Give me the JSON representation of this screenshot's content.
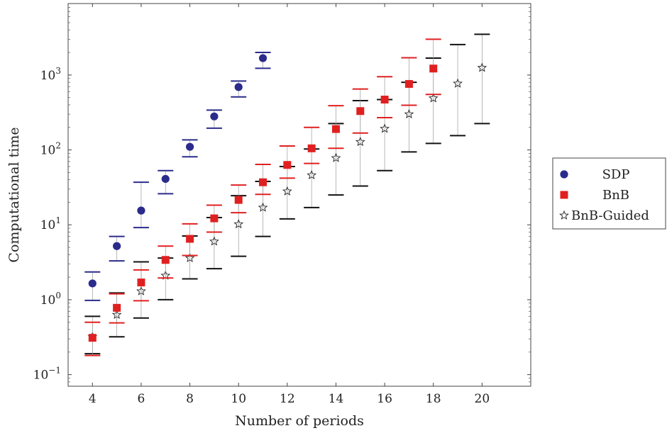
{
  "chart_data": {
    "type": "scatter",
    "title": "",
    "xlabel": "Number of periods",
    "ylabel": "Computational time",
    "ylabel_color": "#e04a3a",
    "xlim": [
      3,
      22
    ],
    "ylim": [
      0.07,
      9000
    ],
    "yscale": "log",
    "x_ticks": [
      "4",
      "6",
      "8",
      "10",
      "12",
      "14",
      "16",
      "18",
      "20"
    ],
    "y_ticks": [
      {
        "base": "10",
        "exp": "−1",
        "value": 0.1
      },
      {
        "base": "10",
        "exp": "0",
        "value": 1
      },
      {
        "base": "10",
        "exp": "1",
        "value": 10
      },
      {
        "base": "10",
        "exp": "2",
        "value": 100
      },
      {
        "base": "10",
        "exp": "3",
        "value": 1000
      }
    ],
    "grid": false,
    "legend_position": "right",
    "series": [
      {
        "name": "SDP",
        "marker": "circle",
        "color": "#2b2b8c",
        "bar_color": "#2b2b8c",
        "points": [
          {
            "x": 4,
            "y": 1.65,
            "lo": 0.98,
            "hi": 2.35
          },
          {
            "x": 5,
            "y": 5.2,
            "lo": 3.3,
            "hi": 7.0
          },
          {
            "x": 6,
            "y": 15.5,
            "lo": 9.2,
            "hi": 37
          },
          {
            "x": 7,
            "y": 41,
            "lo": 26,
            "hi": 53
          },
          {
            "x": 8,
            "y": 110,
            "lo": 81,
            "hi": 136
          },
          {
            "x": 9,
            "y": 280,
            "lo": 195,
            "hi": 340
          },
          {
            "x": 10,
            "y": 690,
            "lo": 510,
            "hi": 830
          },
          {
            "x": 11,
            "y": 1680,
            "lo": 1230,
            "hi": 2000
          }
        ]
      },
      {
        "name": "BnB",
        "marker": "square",
        "color": "#e02020",
        "bar_color": "#e02020",
        "points": [
          {
            "x": 4,
            "y": 0.31,
            "lo": 0.18,
            "hi": 0.5
          },
          {
            "x": 5,
            "y": 0.78,
            "lo": 0.49,
            "hi": 1.2
          },
          {
            "x": 6,
            "y": 1.7,
            "lo": 0.97,
            "hi": 2.5
          },
          {
            "x": 7,
            "y": 3.4,
            "lo": 1.95,
            "hi": 5.2
          },
          {
            "x": 8,
            "y": 6.5,
            "lo": 3.9,
            "hi": 10.3
          },
          {
            "x": 9,
            "y": 12.2,
            "lo": 8.0,
            "hi": 18.3
          },
          {
            "x": 10,
            "y": 21.5,
            "lo": 14.5,
            "hi": 34
          },
          {
            "x": 11,
            "y": 37,
            "lo": 25.5,
            "hi": 64
          },
          {
            "x": 12,
            "y": 63,
            "lo": 42,
            "hi": 113
          },
          {
            "x": 13,
            "y": 105,
            "lo": 66,
            "hi": 200
          },
          {
            "x": 14,
            "y": 190,
            "lo": 105,
            "hi": 390
          },
          {
            "x": 15,
            "y": 330,
            "lo": 168,
            "hi": 650
          },
          {
            "x": 16,
            "y": 470,
            "lo": 270,
            "hi": 950
          },
          {
            "x": 17,
            "y": 760,
            "lo": 395,
            "hi": 1700
          },
          {
            "x": 18,
            "y": 1220,
            "lo": 550,
            "hi": 3000
          }
        ]
      },
      {
        "name": "BnB-Guided",
        "marker": "star",
        "color": "#222222",
        "bar_color": "#111111",
        "points": [
          {
            "x": 4,
            "y": 0.32,
            "lo": 0.19,
            "hi": 0.6
          },
          {
            "x": 5,
            "y": 0.63,
            "lo": 0.32,
            "hi": 1.23
          },
          {
            "x": 6,
            "y": 1.3,
            "lo": 0.57,
            "hi": 3.2
          },
          {
            "x": 7,
            "y": 2.1,
            "lo": 1.0,
            "hi": 3.6
          },
          {
            "x": 8,
            "y": 3.6,
            "lo": 1.9,
            "hi": 7.1
          },
          {
            "x": 9,
            "y": 6.0,
            "lo": 2.6,
            "hi": 12.5
          },
          {
            "x": 10,
            "y": 10.2,
            "lo": 3.8,
            "hi": 24.5
          },
          {
            "x": 11,
            "y": 17,
            "lo": 7.0,
            "hi": 38
          },
          {
            "x": 12,
            "y": 28,
            "lo": 12,
            "hi": 60
          },
          {
            "x": 13,
            "y": 46,
            "lo": 17,
            "hi": 103
          },
          {
            "x": 14,
            "y": 78,
            "lo": 25,
            "hi": 225
          },
          {
            "x": 15,
            "y": 128,
            "lo": 33,
            "hi": 455
          },
          {
            "x": 16,
            "y": 192,
            "lo": 53,
            "hi": 470
          },
          {
            "x": 17,
            "y": 300,
            "lo": 94,
            "hi": 800
          },
          {
            "x": 18,
            "y": 490,
            "lo": 122,
            "hi": 1680
          },
          {
            "x": 19,
            "y": 770,
            "lo": 155,
            "hi": 2550
          },
          {
            "x": 20,
            "y": 1250,
            "lo": 225,
            "hi": 3500
          }
        ]
      }
    ]
  }
}
